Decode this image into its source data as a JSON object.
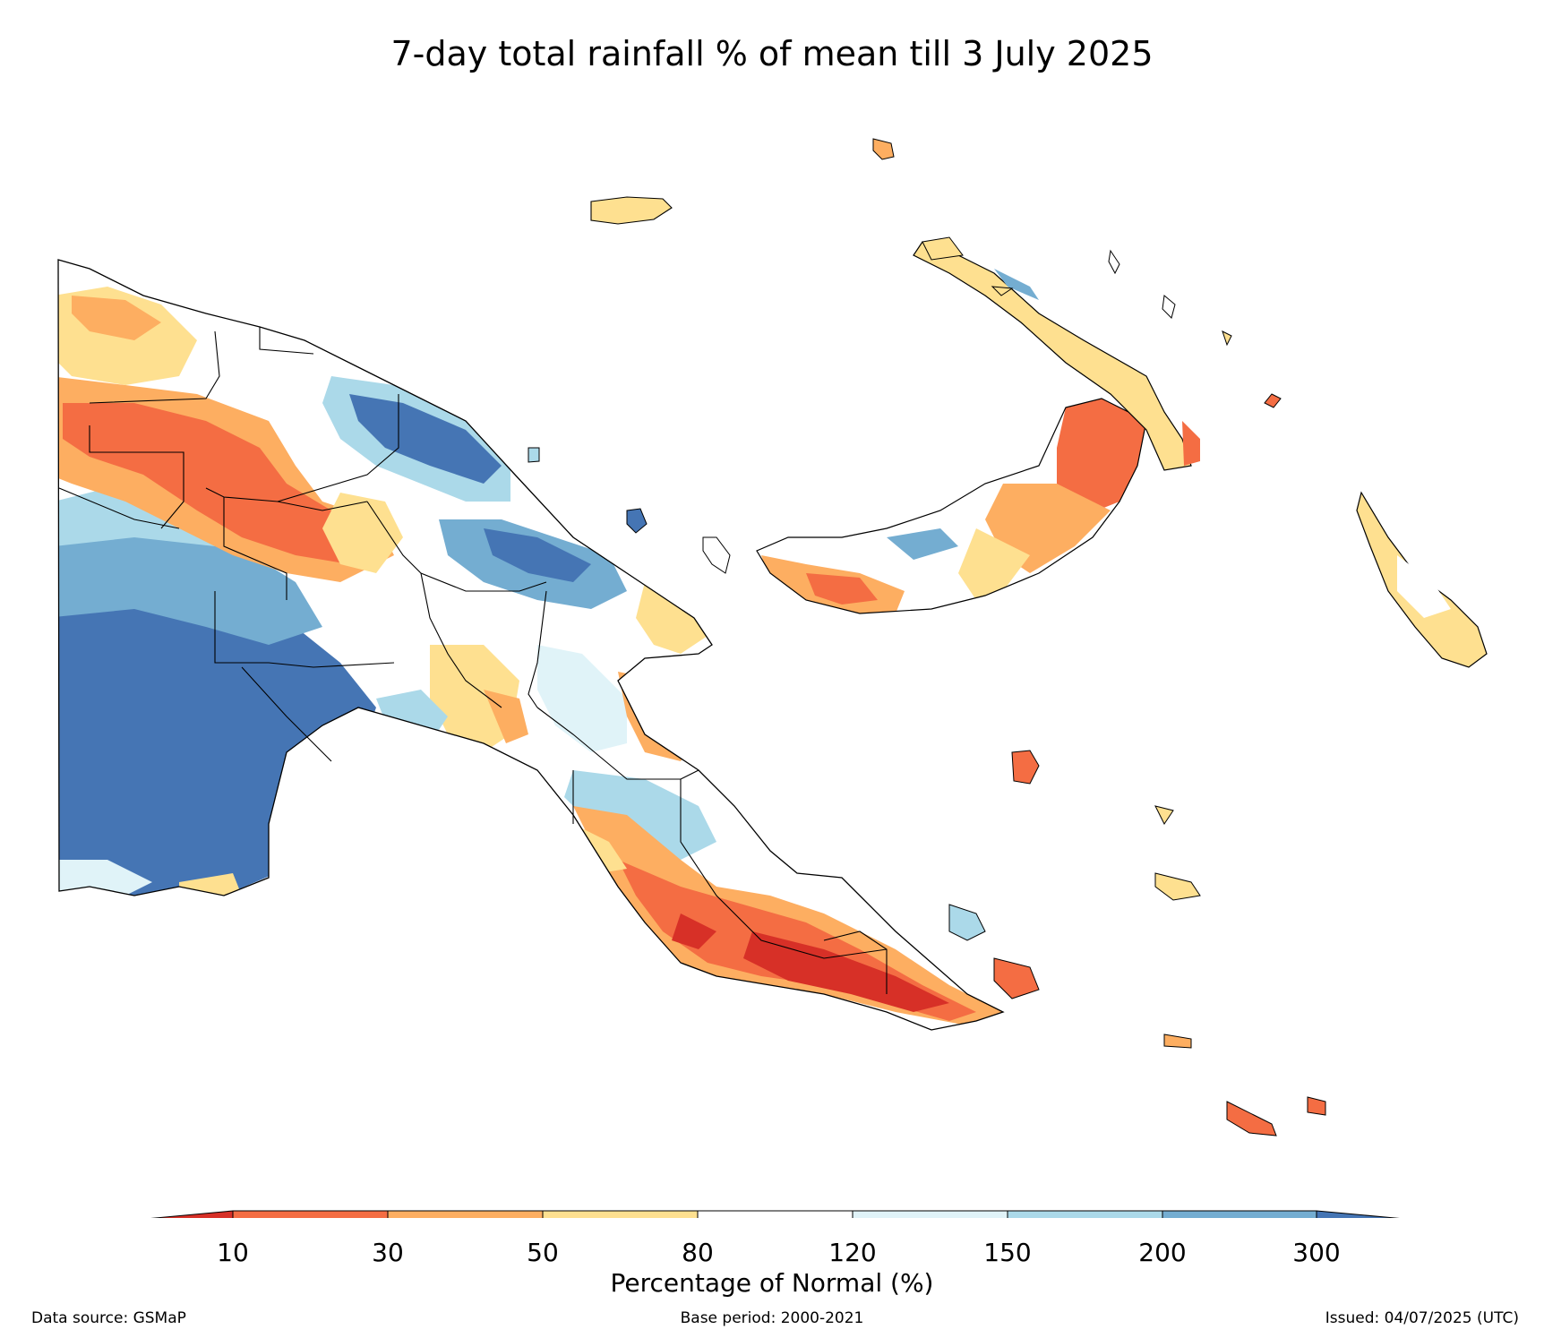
{
  "title": "7-day total rainfall % of mean till 3 July 2025",
  "legend": {
    "label": "Percentage of Normal (%)",
    "ticks": [
      "10",
      "30",
      "50",
      "80",
      "120",
      "150",
      "200",
      "300"
    ],
    "colors": {
      "lt10": "#d73027",
      "10-30": "#f46d43",
      "30-50": "#fdae61",
      "50-80": "#fee090",
      "80-120": "#ffffff",
      "120-150": "#e0f3f8",
      "150-200": "#abd9e9",
      "200-300": "#74add1",
      "gt300": "#4575b4"
    }
  },
  "footer": {
    "source": "Data source: GSMaP",
    "base_period": "Base period: 2000-2021",
    "issued": "Issued: 04/07/2025 (UTC)"
  }
}
